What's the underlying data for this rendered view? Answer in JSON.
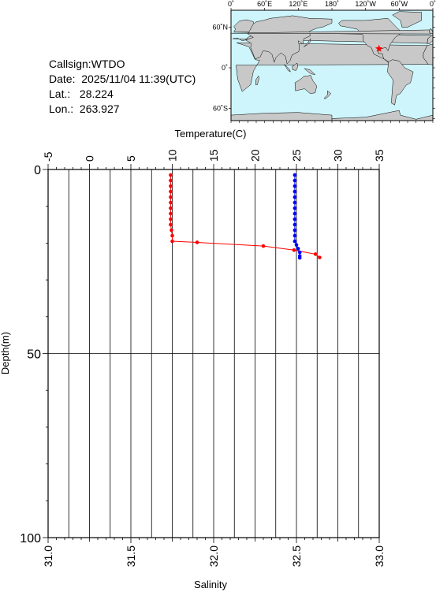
{
  "info": {
    "callsign_label": "Callsign:",
    "callsign": "WTDO",
    "date_label": "Date:",
    "date": "2025/11/04 11:39(UTC)",
    "lat_label": "Lat.:",
    "lat": "28.224",
    "lon_label": "Lon.:",
    "lon": "263.927"
  },
  "map": {
    "top_ticks": [
      "0˚",
      "60˚E",
      "120˚E",
      "180˚",
      "120˚W",
      "60˚W",
      "0˚"
    ],
    "left_ticks": [
      "60˚N",
      "0˚",
      "60˚S"
    ],
    "ocean_color": "#cdf5fb",
    "land_color": "#c8c8c8",
    "marker_color": "#ff0000",
    "marker_lon": 263.927,
    "marker_lat": 28.224
  },
  "chart_data": {
    "type": "line",
    "xlabel_top": "Temperature(C)",
    "xlabel_bottom": "Salinity",
    "ylabel": "Depth(m)",
    "temperature_ticks": [
      "-5",
      "0",
      "5",
      "10",
      "15",
      "20",
      "25",
      "30",
      "35"
    ],
    "salinity_ticks": [
      "31.0",
      "31.5",
      "32.0",
      "32.5",
      "33.0"
    ],
    "depth_ticks": [
      "0",
      "50",
      "100"
    ],
    "temperature_range": [
      -5,
      35
    ],
    "salinity_range": [
      31.0,
      33.0
    ],
    "depth_range": [
      0,
      100
    ],
    "grid": true,
    "series": [
      {
        "color": "#ff0000",
        "axis": "temperature",
        "points": [
          {
            "value": 9.8,
            "depth": 1.5
          },
          {
            "value": 9.8,
            "depth": 3
          },
          {
            "value": 9.8,
            "depth": 4.5
          },
          {
            "value": 9.8,
            "depth": 6
          },
          {
            "value": 9.8,
            "depth": 7.5
          },
          {
            "value": 9.8,
            "depth": 9
          },
          {
            "value": 9.8,
            "depth": 10.5
          },
          {
            "value": 9.8,
            "depth": 12
          },
          {
            "value": 9.8,
            "depth": 13.5
          },
          {
            "value": 9.8,
            "depth": 15
          },
          {
            "value": 9.9,
            "depth": 16.5
          },
          {
            "value": 10.0,
            "depth": 18
          },
          {
            "value": 10.0,
            "depth": 19.5
          },
          {
            "value": 13.0,
            "depth": 19.8
          },
          {
            "value": 21.0,
            "depth": 20.8
          },
          {
            "value": 24.7,
            "depth": 21.9
          },
          {
            "value": 27.3,
            "depth": 23.0
          },
          {
            "value": 27.8,
            "depth": 23.9
          }
        ]
      },
      {
        "color": "#0000ff",
        "axis": "salinity",
        "points": [
          {
            "value": 32.49,
            "depth": 1.5
          },
          {
            "value": 32.49,
            "depth": 3
          },
          {
            "value": 32.49,
            "depth": 4.5
          },
          {
            "value": 32.49,
            "depth": 6
          },
          {
            "value": 32.49,
            "depth": 7.5
          },
          {
            "value": 32.49,
            "depth": 9
          },
          {
            "value": 32.49,
            "depth": 10.5
          },
          {
            "value": 32.49,
            "depth": 12
          },
          {
            "value": 32.49,
            "depth": 13.5
          },
          {
            "value": 32.49,
            "depth": 15
          },
          {
            "value": 32.49,
            "depth": 16.5
          },
          {
            "value": 32.49,
            "depth": 18
          },
          {
            "value": 32.49,
            "depth": 19.5
          },
          {
            "value": 32.5,
            "depth": 20.5
          },
          {
            "value": 32.51,
            "depth": 21.5
          },
          {
            "value": 32.52,
            "depth": 22.5
          },
          {
            "value": 32.52,
            "depth": 23.5
          },
          {
            "value": 32.52,
            "depth": 24.0
          }
        ]
      }
    ]
  }
}
